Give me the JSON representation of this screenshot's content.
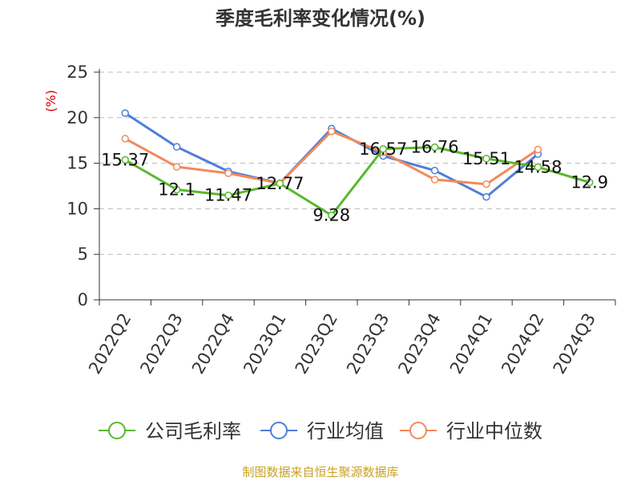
{
  "colors": {
    "company": "#5ab82e",
    "industry_avg": "#4f7ed9",
    "industry_median": "#f28a5a",
    "grid": "#bbbbbb",
    "unit": "#cc0000",
    "source": "#c9a227"
  },
  "chart_data": {
    "type": "line",
    "title": "季度毛利率变化情况(%)",
    "ylabel": "(%)",
    "ylim": [
      0,
      25
    ],
    "yticks": [
      0,
      5,
      10,
      15,
      20,
      25
    ],
    "grid": true,
    "legend_position": "bottom",
    "categories": [
      "2022Q2",
      "2022Q3",
      "2022Q4",
      "2023Q1",
      "2023Q2",
      "2023Q3",
      "2023Q4",
      "2024Q1",
      "2024Q2",
      "2024Q3"
    ],
    "series": [
      {
        "name": "公司毛利率",
        "color": "#5ab82e",
        "show_labels": true,
        "labels": [
          "15.37",
          "12.1",
          "11.47",
          "12.77",
          "9.28",
          "16.57",
          "16.76",
          "15.51",
          "14.58",
          "12.9"
        ],
        "values": [
          15.37,
          12.1,
          11.47,
          12.77,
          9.28,
          16.57,
          16.76,
          15.51,
          14.58,
          12.9
        ]
      },
      {
        "name": "行业均值",
        "color": "#4f7ed9",
        "show_labels": false,
        "values": [
          20.5,
          16.8,
          14.1,
          12.8,
          18.8,
          15.8,
          14.2,
          11.3,
          16.0,
          null
        ]
      },
      {
        "name": "行业中位数",
        "color": "#f28a5a",
        "show_labels": false,
        "values": [
          17.7,
          14.6,
          13.9,
          12.8,
          18.5,
          16.2,
          13.2,
          12.7,
          16.5,
          null
        ]
      }
    ]
  },
  "source": "制图数据来自恒生聚源数据库"
}
